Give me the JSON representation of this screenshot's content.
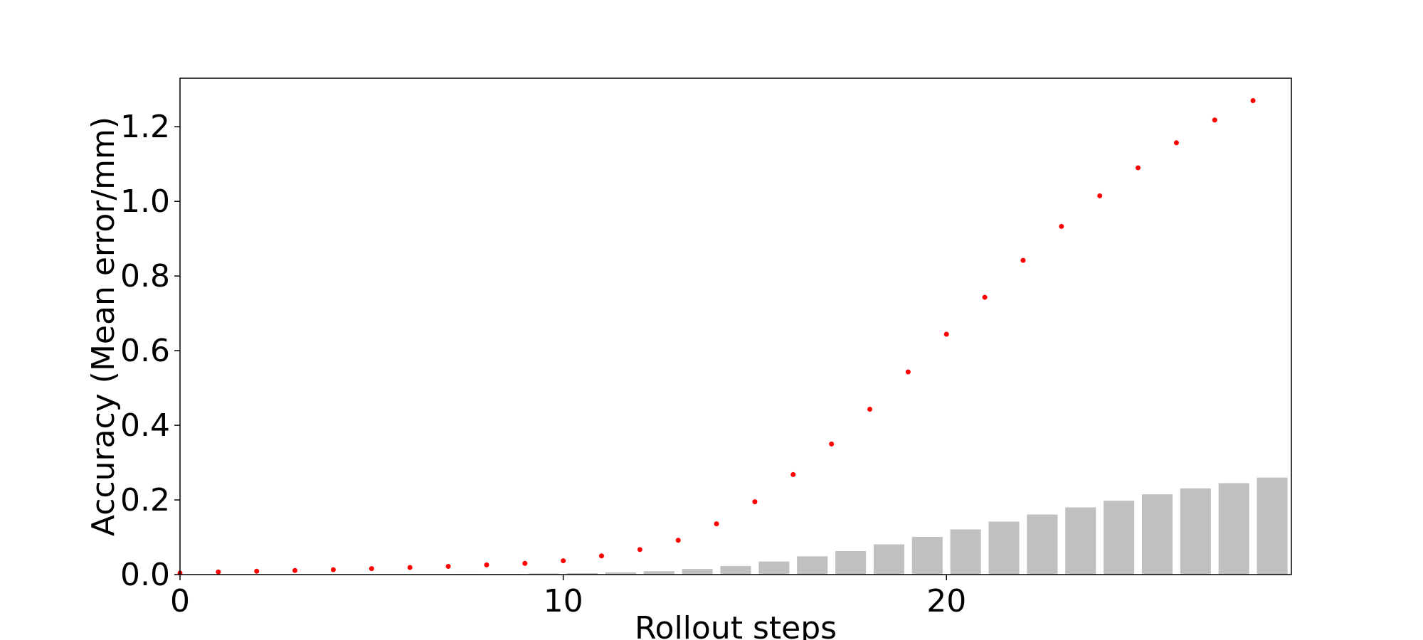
{
  "chart_data": {
    "type": "bar",
    "title": "",
    "xlabel": "Rollout steps",
    "ylabel": "Accuracy (Mean error/mm)",
    "xlim": [
      0,
      29
    ],
    "ylim": [
      0,
      1.33
    ],
    "xticks": [
      0,
      10,
      20
    ],
    "yticks": [
      0.0,
      0.2,
      0.4,
      0.6,
      0.8,
      1.0,
      1.2
    ],
    "xtick_labels": [
      "0",
      "10",
      "20"
    ],
    "ytick_labels": [
      "0.0",
      "0.2",
      "0.4",
      "0.6",
      "0.8",
      "1.0",
      "1.2"
    ],
    "grid": false,
    "legend": "none",
    "colors": {
      "bars": "#c0c0c0",
      "points": "#ff0000",
      "axes": "#000000"
    },
    "series": [
      {
        "kind": "bar",
        "x": [
          0,
          1,
          2,
          3,
          4,
          5,
          6,
          7,
          8,
          9,
          10,
          11,
          12,
          13,
          14,
          15,
          16,
          17,
          18,
          19,
          20,
          21,
          22,
          23,
          24,
          25,
          26,
          27,
          28
        ],
        "values": [
          0.0,
          0.0,
          0.0,
          0.0,
          0.0005,
          0.0008,
          0.001,
          0.0015,
          0.002,
          0.003,
          0.004,
          0.006,
          0.009,
          0.015,
          0.023,
          0.035,
          0.049,
          0.063,
          0.081,
          0.101,
          0.121,
          0.142,
          0.161,
          0.18,
          0.198,
          0.215,
          0.231,
          0.245,
          0.26
        ]
      },
      {
        "kind": "scatter",
        "x": [
          0,
          1,
          2,
          3,
          4,
          5,
          6,
          7,
          8,
          9,
          10,
          11,
          12,
          13,
          14,
          15,
          16,
          17,
          18,
          19,
          20,
          21,
          22,
          23,
          24,
          25,
          26,
          27,
          28
        ],
        "values": [
          0.004,
          0.007,
          0.009,
          0.011,
          0.013,
          0.016,
          0.019,
          0.022,
          0.026,
          0.03,
          0.037,
          0.05,
          0.067,
          0.092,
          0.136,
          0.195,
          0.268,
          0.35,
          0.443,
          0.543,
          0.644,
          0.743,
          0.842,
          0.933,
          1.015,
          1.09,
          1.157,
          1.218,
          1.27
        ]
      }
    ]
  }
}
